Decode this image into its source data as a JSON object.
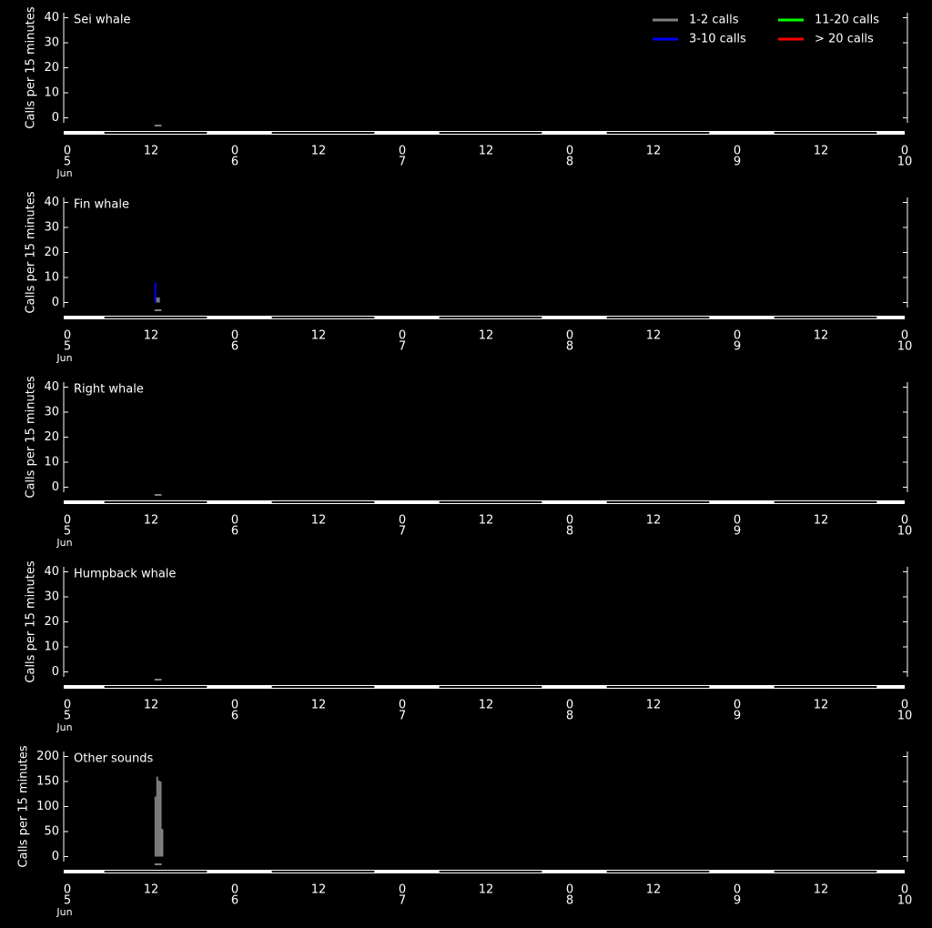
{
  "legend": [
    {
      "name": "1-2 calls",
      "color": "#808080"
    },
    {
      "name": "3-10 calls",
      "color": "#0000ff"
    },
    {
      "name": "11-20 calls",
      "color": "#00ff00"
    },
    {
      "name": "> 20 calls",
      "color": "#ff0000"
    }
  ],
  "night_periods": [
    [
      5.3,
      20
    ],
    [
      29.3,
      44
    ],
    [
      53.3,
      68
    ],
    [
      77.3,
      92
    ],
    [
      101.3,
      116
    ]
  ],
  "chart_data": [
    {
      "type": "bar",
      "title": "Sei whale",
      "y_label": "Calls per 15 minutes",
      "ylim": [
        -2,
        42
      ],
      "yticks": [
        0,
        10,
        20,
        30,
        40
      ],
      "xlim": [
        0,
        120
      ],
      "effort": [
        12.5,
        13.5
      ],
      "series": []
    },
    {
      "type": "bar",
      "title": "Fin whale",
      "y_label": "Calls per 15 minutes",
      "ylim": [
        -2,
        42
      ],
      "yticks": [
        0,
        10,
        20,
        30,
        40
      ],
      "xlim": [
        0,
        120
      ],
      "effort": [
        12.5,
        13.5
      ],
      "series": [
        {
          "color": "#0000ff",
          "x": [
            12.5
          ],
          "values": [
            8
          ]
        },
        {
          "color": "#808080",
          "x": [
            12.75,
            13
          ],
          "values": [
            2,
            2
          ]
        }
      ]
    },
    {
      "type": "bar",
      "title": "Right whale",
      "y_label": "Calls per 15 minutes",
      "ylim": [
        -2,
        42
      ],
      "yticks": [
        0,
        10,
        20,
        30,
        40
      ],
      "xlim": [
        0,
        120
      ],
      "effort": [
        12.5,
        13.5
      ],
      "series": []
    },
    {
      "type": "bar",
      "title": "Humpback whale",
      "y_label": "Calls per 15 minutes",
      "ylim": [
        -2,
        42
      ],
      "yticks": [
        0,
        10,
        20,
        30,
        40
      ],
      "xlim": [
        0,
        120
      ],
      "effort": [
        12.5,
        13.5
      ],
      "series": []
    },
    {
      "type": "bar",
      "title": "Other sounds",
      "y_label": "Calls per 15 minutes",
      "ylim": [
        -10,
        210
      ],
      "yticks": [
        0,
        50,
        100,
        150,
        200
      ],
      "xlim": [
        0,
        120
      ],
      "effort": [
        12.5,
        13.5
      ],
      "series": [
        {
          "color": "#808080",
          "x": [
            12.5,
            12.75,
            13,
            13.25,
            13.5
          ],
          "values": [
            120,
            160,
            152,
            150,
            55
          ]
        }
      ]
    }
  ],
  "xticks": [
    0,
    12,
    {
      "value": 24,
      "label": "0"
    },
    {
      "value": 36,
      "label": "12"
    },
    {
      "value": 48,
      "label": "0"
    },
    {
      "value": 60,
      "label": "12"
    },
    {
      "value": 72,
      "label": "0"
    },
    {
      "value": 84,
      "label": "12"
    },
    {
      "value": 96,
      "label": "0"
    },
    {
      "value": 108,
      "label": "12"
    },
    {
      "value": 120,
      "label": "0"
    }
  ],
  "day_labels": [
    {
      "value": 0,
      "label": "5"
    },
    {
      "value": 24,
      "label": "6"
    },
    {
      "value": 48,
      "label": "7"
    },
    {
      "value": 72,
      "label": "8"
    },
    {
      "value": 96,
      "label": "9"
    },
    {
      "value": 120,
      "label": "10"
    }
  ],
  "month_label": "Jun"
}
